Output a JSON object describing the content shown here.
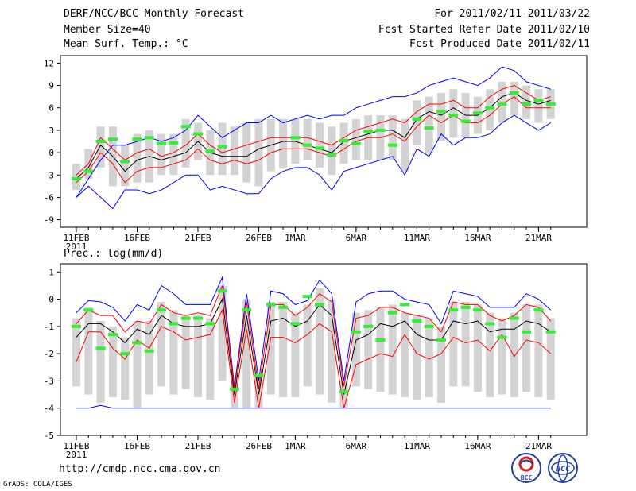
{
  "header": {
    "title": "DERF/NCC/BCC Monthly Forecast",
    "member_size": "Member Size=40",
    "variable": "Mean Surf. Temp.: °C",
    "period": "For 2011/02/11-2011/03/22",
    "fcst_started": "Fcst Started Refer Date 2011/02/10",
    "fcst_produced": "Fcst Produced Date 2011/02/11"
  },
  "footer": {
    "url": "http://cmdp.ncc.cma.gov.cn",
    "grads": "GrADS: COLA/IGES",
    "logo_bcc": "BCC",
    "logo_ncc": "NCC"
  },
  "colors": {
    "box": "#d3d3d3",
    "envelope": "#0000ff",
    "quartile": "#ff0000",
    "mean": "#000000",
    "obs": "#33ee33"
  },
  "chart_data": [
    {
      "type": "line",
      "title": "Mean Surf. Temp.: °C",
      "x": [
        "11FEB",
        "12FEB",
        "13FEB",
        "14FEB",
        "15FEB",
        "16FEB",
        "17FEB",
        "18FEB",
        "19FEB",
        "20FEB",
        "21FEB",
        "22FEB",
        "23FEB",
        "24FEB",
        "25FEB",
        "26FEB",
        "27FEB",
        "28FEB",
        "1MAR",
        "2MAR",
        "3MAR",
        "4MAR",
        "5MAR",
        "6MAR",
        "7MAR",
        "8MAR",
        "9MAR",
        "10MAR",
        "11MAR",
        "12MAR",
        "13MAR",
        "14MAR",
        "15MAR",
        "16MAR",
        "17MAR",
        "18MAR",
        "19MAR",
        "20MAR",
        "21MAR",
        "22MAR"
      ],
      "xtick_labels": [
        "11FEB",
        "16FEB",
        "21FEB",
        "26FEB",
        "1MAR",
        "6MAR",
        "11MAR",
        "16MAR",
        "21MAR"
      ],
      "xtick_year": "2011",
      "ylim": [
        -10,
        13
      ],
      "yticks": [
        -9,
        -6,
        -3,
        0,
        3,
        6,
        9,
        12
      ],
      "series": [
        {
          "name": "max",
          "values": [
            -6,
            -3.5,
            -1,
            1,
            1,
            1.5,
            2,
            1.5,
            2,
            3,
            5,
            3.5,
            2,
            3,
            4,
            4,
            5,
            4,
            4.5,
            5,
            4.5,
            5,
            5,
            6,
            6.5,
            7,
            7.5,
            7.5,
            8,
            9,
            9.5,
            10,
            9.5,
            9,
            10,
            11.5,
            11,
            9.5,
            9,
            8.5
          ]
        },
        {
          "name": "min",
          "values": [
            -6,
            -4.5,
            -6,
            -7.5,
            -5,
            -5,
            -5.5,
            -5,
            -4,
            -3,
            -3,
            -5,
            -4.5,
            -5,
            -5.5,
            -5.5,
            -3.5,
            -2.5,
            -2,
            -2,
            -3,
            -5,
            -2.5,
            -2,
            -1.5,
            -1,
            -0.5,
            -3,
            0.5,
            -0.5,
            2.5,
            1,
            2,
            2,
            2.5,
            4,
            5,
            4,
            3,
            4
          ]
        },
        {
          "name": "upper_quartile",
          "values": [
            -3,
            -1.5,
            2,
            0.5,
            -1,
            0,
            0.5,
            -0.5,
            0,
            1,
            2.5,
            1,
            0,
            0.5,
            1,
            1.5,
            2,
            2,
            2,
            2,
            1.5,
            1,
            2,
            3,
            3.5,
            4,
            4.5,
            4,
            5.5,
            6.5,
            6.5,
            7,
            6,
            6,
            7.5,
            8.5,
            9,
            8,
            7,
            7.5
          ]
        },
        {
          "name": "lower_quartile",
          "values": [
            -4,
            -2.5,
            0,
            -1.5,
            -4,
            -2.5,
            -2,
            -2,
            -1.5,
            -1,
            0.5,
            -1,
            -1.5,
            -1,
            -1.5,
            -1,
            0,
            0.5,
            0.5,
            0.5,
            0,
            -0.5,
            0.5,
            1.5,
            2,
            2,
            2.5,
            1.5,
            3.5,
            5,
            4,
            5,
            4,
            4,
            5,
            6.5,
            7.5,
            6,
            6,
            6
          ]
        },
        {
          "name": "ensemble_mean",
          "values": [
            -3.5,
            -2,
            1,
            -0.5,
            -2.5,
            -1,
            -0.5,
            -1,
            -0.5,
            0,
            1.5,
            0,
            -0.5,
            -0.5,
            -0.5,
            0.5,
            1,
            1.5,
            1.5,
            1,
            0.5,
            0,
            1.5,
            2,
            2.5,
            3,
            3,
            2,
            4.5,
            5.5,
            5,
            6,
            5,
            5,
            6,
            7.5,
            8,
            7,
            6.5,
            7
          ]
        },
        {
          "name": "obs_marker",
          "values": [
            -3.5,
            -2.5,
            1.5,
            1.8,
            -1.2,
            1.8,
            2,
            1.2,
            1.3,
            3.5,
            2.5,
            0.2,
            0.8,
            null,
            null,
            null,
            null,
            null,
            2,
            1,
            0.6,
            -0.3,
            1.6,
            1.2,
            2.8,
            3,
            1,
            null,
            4.5,
            3.3,
            5.5,
            5,
            4.2,
            5.3,
            6,
            6.5,
            8,
            6.5,
            7,
            6.5
          ]
        }
      ],
      "box_q_low": [
        -5,
        -3.5,
        -2,
        -4.5,
        -4.5,
        -4,
        -4,
        -3,
        -3,
        -2,
        -1,
        -3,
        -3,
        -3,
        -4,
        -4.5,
        -2.5,
        -2,
        -1.5,
        -1,
        -2,
        -3,
        -1.5,
        -1,
        -1,
        -1,
        -1,
        -2.5,
        1,
        0,
        1.5,
        2,
        2,
        2.5,
        3,
        4,
        5,
        4.5,
        4,
        4.5
      ],
      "box_q_high": [
        -1.5,
        0.5,
        3.5,
        3.5,
        1,
        2.5,
        3,
        2.5,
        2.5,
        4.5,
        4,
        3,
        4,
        3.5,
        4,
        4.5,
        4.5,
        4.5,
        4.5,
        4.5,
        4,
        3.5,
        4,
        4.5,
        5,
        5,
        5,
        4.5,
        7,
        7.5,
        8,
        8.5,
        8,
        7.5,
        8.5,
        9.5,
        9.5,
        9,
        8.5,
        8.5
      ]
    },
    {
      "type": "line",
      "title": "Prec.: log(mm/d)",
      "x": [
        "11FEB",
        "12FEB",
        "13FEB",
        "14FEB",
        "15FEB",
        "16FEB",
        "17FEB",
        "18FEB",
        "19FEB",
        "20FEB",
        "21FEB",
        "22FEB",
        "23FEB",
        "24FEB",
        "25FEB",
        "26FEB",
        "27FEB",
        "28FEB",
        "1MAR",
        "2MAR",
        "3MAR",
        "4MAR",
        "5MAR",
        "6MAR",
        "7MAR",
        "8MAR",
        "9MAR",
        "10MAR",
        "11MAR",
        "12MAR",
        "13MAR",
        "14MAR",
        "15MAR",
        "16MAR",
        "17MAR",
        "18MAR",
        "19MAR",
        "20MAR",
        "21MAR",
        "22MAR"
      ],
      "xtick_labels": [
        "11FEB",
        "16FEB",
        "21FEB",
        "26FEB",
        "1MAR",
        "6MAR",
        "11MAR",
        "16MAR",
        "21MAR"
      ],
      "xtick_year": "2011",
      "ylim": [
        -5,
        1.3
      ],
      "yticks": [
        -5,
        -4,
        -3,
        -2,
        -1,
        0,
        1
      ],
      "series": [
        {
          "name": "max",
          "values": [
            -0.5,
            -0.05,
            -0.1,
            -0.3,
            -0.8,
            -0.2,
            -0.4,
            0.5,
            0.2,
            -0.2,
            -0.2,
            -0.2,
            0.8,
            -3.2,
            0.2,
            -3,
            0.3,
            0.2,
            -0.2,
            -0.05,
            0.7,
            0.2,
            -3,
            -0.1,
            0.2,
            0.3,
            0.3,
            0,
            -0.1,
            -0.2,
            -0.9,
            0.3,
            0.2,
            0.1,
            -0.3,
            -0.3,
            -0.3,
            0.2,
            0,
            -0.4
          ]
        },
        {
          "name": "min",
          "values": [
            -4,
            -4,
            -3.9,
            -4,
            -4,
            -4,
            -4,
            -4,
            -4,
            -4,
            -4,
            -4,
            -4,
            -4,
            -4,
            -4,
            -4,
            -4,
            -4,
            -4,
            -4,
            -4,
            -4,
            -4,
            -4,
            -4,
            -4,
            -4,
            -4,
            -4,
            -4,
            -4,
            -4,
            -4,
            -4,
            -4,
            -4,
            -4,
            -4,
            -4
          ]
        },
        {
          "name": "upper_quartile",
          "values": [
            -0.9,
            -0.4,
            -0.6,
            -0.6,
            -1.2,
            -0.8,
            -0.9,
            -0.2,
            -0.5,
            -0.6,
            -0.5,
            -0.6,
            0.5,
            -3.3,
            -0.1,
            -3.3,
            -0.2,
            -0.2,
            -0.6,
            -0.3,
            0.2,
            -0.1,
            -3.2,
            -0.7,
            -0.6,
            -0.3,
            -0.3,
            -0.5,
            -0.6,
            -0.7,
            -1.2,
            -0.1,
            -0.2,
            -0.2,
            -0.6,
            -0.8,
            -0.6,
            -0.2,
            -0.3,
            -0.8
          ]
        },
        {
          "name": "lower_quartile",
          "values": [
            -2.3,
            -1.2,
            -1.2,
            -1.8,
            -2.2,
            -1.5,
            -1.8,
            -1.0,
            -1.2,
            -1.5,
            -1.4,
            -1.3,
            -0.4,
            -3.8,
            -1.1,
            -4,
            -1.4,
            -1.4,
            -1.6,
            -1.3,
            -0.9,
            -1.2,
            -4,
            -2.4,
            -2.2,
            -2.0,
            -2.1,
            -1.3,
            -2.0,
            -2.2,
            -2.0,
            -1.4,
            -1.6,
            -1.5,
            -1.9,
            -1.3,
            -2.1,
            -1.5,
            -1.6,
            -2.0
          ]
        },
        {
          "name": "ensemble_mean",
          "values": [
            -1.4,
            -0.9,
            -0.9,
            -1.2,
            -1.6,
            -1.1,
            -1.3,
            -0.6,
            -0.9,
            -1.0,
            -1.0,
            -0.9,
            0,
            -3.5,
            -0.6,
            -3.5,
            -0.8,
            -0.7,
            -1.0,
            -0.8,
            -0.2,
            -0.6,
            -3.5,
            -1.5,
            -1.3,
            -0.9,
            -1.0,
            -0.8,
            -1.3,
            -1.5,
            -1.5,
            -0.8,
            -0.9,
            -0.8,
            -1.2,
            -1.1,
            -1.1,
            -0.8,
            -0.9,
            -1.2
          ]
        },
        {
          "name": "obs_marker",
          "values": [
            -1,
            -0.4,
            -1.8,
            -1.3,
            -2,
            -1.6,
            -1.9,
            -0.4,
            -0.9,
            -0.7,
            -0.7,
            -0.9,
            0.3,
            -3.3,
            -0.4,
            -2.8,
            -0.2,
            -0.3,
            -0.9,
            0.1,
            -0.2,
            null,
            -3.4,
            -1.2,
            -1,
            -1.5,
            -0.5,
            -0.2,
            -0.8,
            -1,
            -1.5,
            -0.4,
            -0.3,
            -0.4,
            -0.9,
            -1.4,
            -0.7,
            -1.2,
            -0.4,
            -1.2
          ]
        }
      ],
      "box_q_low": [
        -3.2,
        -3.5,
        -3.8,
        -3.6,
        -3.7,
        -4,
        -3.5,
        -3.2,
        -3.5,
        -3.3,
        -3.6,
        -3.7,
        -3,
        -4,
        -4,
        -4,
        -3.5,
        -3.6,
        -3.6,
        -3.2,
        -3.5,
        -3.8,
        -4,
        -3.2,
        -3.3,
        -3.4,
        -3.5,
        -3.6,
        -3.7,
        -3.6,
        -3.8,
        -3.2,
        -3.2,
        -3.4,
        -3.6,
        -3.5,
        -3.6,
        -3.4,
        -3.6,
        -3.7
      ],
      "box_q_high": [
        -0.7,
        -0.3,
        -0.8,
        -1.0,
        -1.4,
        -0.8,
        -0.8,
        -0.1,
        -0.4,
        -0.6,
        -0.6,
        -0.7,
        0.5,
        -3.0,
        0,
        -2.8,
        -0.1,
        -0.1,
        -0.5,
        -0.2,
        0.4,
        0,
        -3.0,
        -0.5,
        -0.4,
        -0.3,
        -0.2,
        -0.5,
        -0.6,
        -0.7,
        -1.0,
        -0.1,
        -0.1,
        -0.2,
        -0.5,
        -0.7,
        -0.5,
        -0.2,
        -0.2,
        -0.7
      ]
    }
  ]
}
